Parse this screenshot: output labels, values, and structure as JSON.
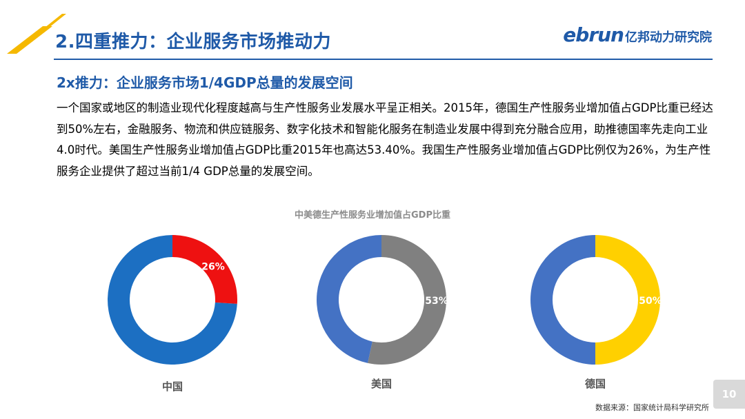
{
  "slide": {
    "title": "2.四重推力：企业服务市场推动力",
    "subtitle": "2x推力：企业服务市场1/4GDP总量的发展空间",
    "body": "一个国家或地区的制造业现代化程度越高与生产性服务业发展水平呈正相关。2015年，德国生产性服务业增加值占GDP比重已经达到50%左右，金融服务、物流和供应链服务、数字化技术和智能化服务在制造业发展中得到充分融合应用，助推德国率先走向工业4.0时代。美国生产性服务业增加值占GDP比重2015年也高达53.40%。我国生产性服务业增加值占GDP比例仅为26%，为生产性服务企业提供了超过当前1/4 GDP总量的发展空间。",
    "page_number": "10",
    "source": "数据来源：国家统计局科学研究所"
  },
  "logo": {
    "brand": "ebrun",
    "name": "亿邦动力研究院"
  },
  "colors": {
    "title_blue": "#1f5aa8",
    "accent_yellow": "#f5b800"
  },
  "chart_data": {
    "type": "pie",
    "title": "中美德生产性服务业增加值占GDP比重",
    "charts": [
      {
        "category": "中国",
        "value": 26,
        "label": "26%",
        "color": "#ee1111",
        "rest_color": "#1c6fc2"
      },
      {
        "category": "美国",
        "value": 53.4,
        "label": "53%",
        "color": "#808080",
        "rest_color": "#4472c4"
      },
      {
        "category": "德国",
        "value": 50,
        "label": "50%",
        "color": "#ffd000",
        "rest_color": "#4472c4"
      }
    ]
  }
}
